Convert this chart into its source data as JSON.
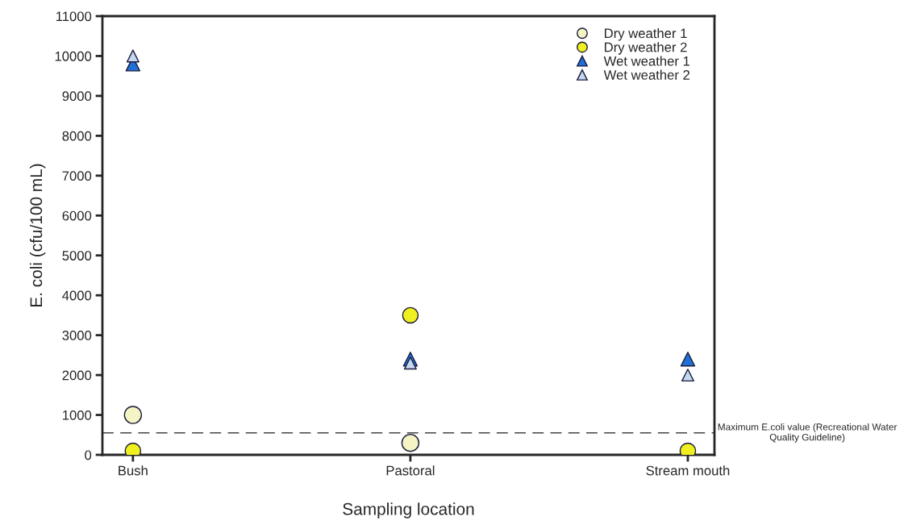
{
  "chart_data": {
    "type": "scatter",
    "xlabel": "Sampling location",
    "ylabel": "E. coli (cfu/100 mL)",
    "categories": [
      "Bush",
      "Pastoral",
      "Stream mouth"
    ],
    "series": [
      {
        "name": "Dry weather 1",
        "color": "#f4f4c4",
        "marker": "circle",
        "values": [
          1000,
          300,
          null
        ]
      },
      {
        "name": "Dry weather 2",
        "color": "#f0f020",
        "marker": "circle",
        "values": [
          100,
          3500,
          100
        ]
      },
      {
        "name": "Wet weather 1",
        "color": "#1f6fd6",
        "marker": "triangle",
        "values": [
          9800,
          2400,
          2400
        ]
      },
      {
        "name": "Wet weather 2",
        "color": "#c4d8f0",
        "marker": "triangle",
        "values": [
          10000,
          2300,
          2000
        ]
      }
    ],
    "ylim": [
      0,
      11000
    ],
    "yticks": [
      0,
      1000,
      2000,
      3000,
      4000,
      5000,
      6000,
      7000,
      8000,
      9000,
      10000,
      11000
    ],
    "ref_lines": [
      {
        "axis": "y",
        "value": 550,
        "label": "Maximum E.coli value (Recreational Water Quality Guideline)",
        "color": "#444444",
        "line_style": "dashed"
      }
    ],
    "grid": false,
    "legend": "top right"
  }
}
